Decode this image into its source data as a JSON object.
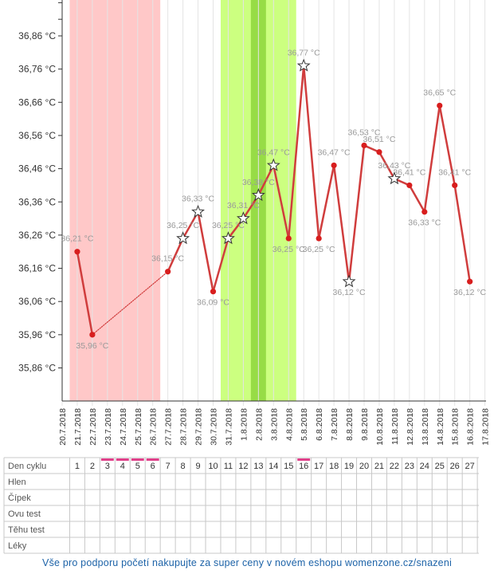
{
  "chart_data": {
    "type": "line",
    "y_ticks": [
      "36,86 °C",
      "36,76 °C",
      "36,66 °C",
      "36,56 °C",
      "36,46 °C",
      "36,36 °C",
      "36,26 °C",
      "36,16 °C",
      "36,06 °C",
      "35,96 °C",
      "35,86 °C"
    ],
    "y_tick_values": [
      36.86,
      36.76,
      36.66,
      36.56,
      36.46,
      36.36,
      36.26,
      36.16,
      36.06,
      35.96,
      35.86
    ],
    "x_dates": [
      "20.7.2018",
      "21.7.2018",
      "22.7.2018",
      "23.7.2018",
      "24.7.2018",
      "25.7.2018",
      "26.7.2018",
      "27.7.2018",
      "28.7.2018",
      "29.7.2018",
      "30.7.2018",
      "31.7.2018",
      "1.8.2018",
      "2.8.2018",
      "3.8.2018",
      "4.8.2018",
      "5.8.2018",
      "6.8.2018",
      "7.8.2018",
      "8.8.2018",
      "9.8.2018",
      "10.8.2018",
      "11.8.2018",
      "12.8.2018",
      "13.8.2018",
      "14.8.2018",
      "15.8.2018",
      "16.8.2018",
      "17.8.2018"
    ],
    "ylim": [
      35.78,
      36.98
    ],
    "series": [
      {
        "color": "#d03d3d",
        "points": [
          {
            "date": "21.7.2018",
            "y": 36.21,
            "label": "36,21 °C",
            "marker": "dot"
          },
          {
            "date": "22.7.2018",
            "y": 35.96,
            "label": "35,96 °C",
            "marker": "dot"
          },
          {
            "date": "27.7.2018",
            "y": 36.15,
            "label": "36,15 °C",
            "marker": "dot",
            "dotted_from_prev": true
          },
          {
            "date": "28.7.2018",
            "y": 36.25,
            "label": "36,25 °C",
            "marker": "star"
          },
          {
            "date": "29.7.2018",
            "y": 36.33,
            "label": "36,33 °C",
            "marker": "star"
          },
          {
            "date": "30.7.2018",
            "y": 36.09,
            "label": "36,09 °C",
            "marker": "dot"
          },
          {
            "date": "31.7.2018",
            "y": 36.25,
            "label": "36,25 °C",
            "marker": "star"
          },
          {
            "date": "1.8.2018",
            "y": 36.31,
            "label": "36,31 °C",
            "marker": "star"
          },
          {
            "date": "2.8.2018",
            "y": 36.38,
            "label": "36,38 °C",
            "marker": "star"
          },
          {
            "date": "3.8.2018",
            "y": 36.47,
            "label": "36,47 °C",
            "marker": "star"
          },
          {
            "date": "4.8.2018",
            "y": 36.25,
            "label": "36,25 °C",
            "marker": "dot"
          },
          {
            "date": "5.8.2018",
            "y": 36.77,
            "label": "36,77 °C",
            "marker": "star"
          },
          {
            "date": "6.8.2018",
            "y": 36.25,
            "label": "36,25 °C",
            "marker": "dot"
          },
          {
            "date": "7.8.2018",
            "y": 36.47,
            "label": "36,47 °C",
            "marker": "dot"
          },
          {
            "date": "8.8.2018",
            "y": 36.12,
            "label": "36,12 °C",
            "marker": "star"
          },
          {
            "date": "9.8.2018",
            "y": 36.53,
            "label": "36,53 °C",
            "marker": "dot"
          },
          {
            "date": "10.8.2018",
            "y": 36.51,
            "label": "36,51 °C",
            "marker": "dot"
          },
          {
            "date": "11.8.2018",
            "y": 36.43,
            "label": "36,43 °C",
            "marker": "star"
          },
          {
            "date": "12.8.2018",
            "y": 36.41,
            "label": "36,41 °C",
            "marker": "dot"
          },
          {
            "date": "13.8.2018",
            "y": 36.33,
            "label": "36,33 °C",
            "marker": "dot"
          },
          {
            "date": "14.8.2018",
            "y": 36.65,
            "label": "36,65 °C",
            "marker": "dot"
          },
          {
            "date": "15.8.2018",
            "y": 36.41,
            "label": "36,41 °C",
            "marker": "dot"
          },
          {
            "date": "16.8.2018",
            "y": 36.12,
            "label": "36,12 °C",
            "marker": "dot"
          }
        ]
      }
    ],
    "bands": [
      {
        "from_date": "20.7.2018",
        "to_date": "26.7.2018",
        "color": "#ffc8c8"
      },
      {
        "from_date": "30.7.2018",
        "to_date": "4.8.2018",
        "color": "#ccff80"
      },
      {
        "from_date": "1.8.2018",
        "to_date": "2.8.2018",
        "color": "#97dc46"
      }
    ],
    "grid": true
  },
  "table": {
    "row_labels": [
      "Den cyklu",
      "Hlen",
      "Čípek",
      "Ovu test",
      "Těhu test",
      "Léky"
    ],
    "cycle_days": [
      "1",
      "2",
      "3",
      "4",
      "5",
      "6",
      "7",
      "8",
      "9",
      "10",
      "11",
      "12",
      "13",
      "14",
      "15",
      "16",
      "17",
      "18",
      "19",
      "20",
      "21",
      "22",
      "23",
      "24",
      "25",
      "26",
      "27"
    ],
    "marked_days": [
      "3",
      "4",
      "5",
      "6",
      "16"
    ],
    "mark_color": "#e0408a"
  },
  "footer": {
    "text": "Vše pro podporu početí nakupujte za super ceny v novém eshopu womenzone.cz/snazeni"
  }
}
